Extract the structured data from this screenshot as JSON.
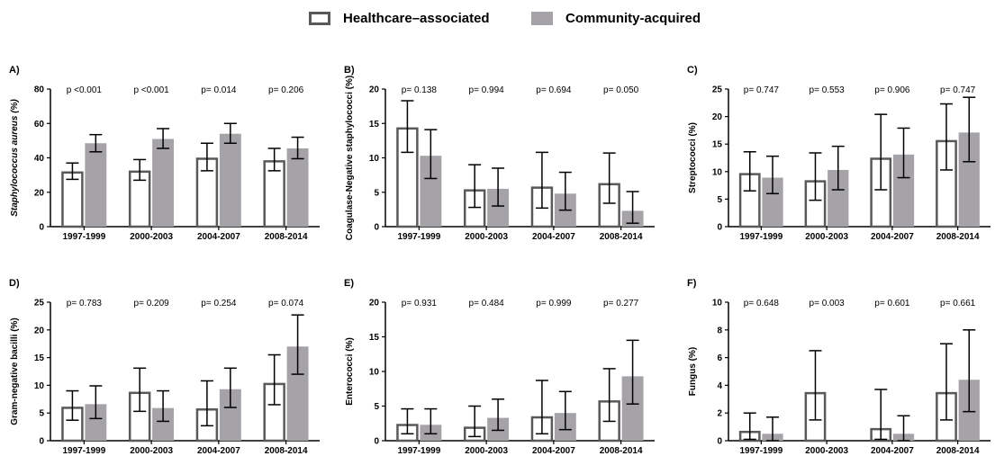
{
  "legend": {
    "healthcare": {
      "label": "Healthcare–associated",
      "fill": "#ffffff",
      "stroke": "#595959"
    },
    "community": {
      "label": "Community-acquired",
      "fill": "#a6a3a8",
      "stroke": "#a6a3a8"
    }
  },
  "chart_data": [
    {
      "type": "bar",
      "panel": "A)",
      "ylabel": "Staphylococcus aureus (%)",
      "ylabel_italic": true,
      "ylim": [
        0,
        80
      ],
      "yticks": [
        0,
        20,
        40,
        60,
        80
      ],
      "categories": [
        "1997-1999",
        "2000-2003",
        "2004-2007",
        "2008-2014"
      ],
      "pvalues": [
        "p <0.001",
        "p <0.001",
        "p= 0.014",
        "p= 0.206"
      ],
      "series": [
        {
          "name": "Healthcare–associated",
          "values": [
            32,
            32.5,
            40,
            38.5
          ],
          "ci_low": [
            27.5,
            27,
            32.5,
            32.5
          ],
          "ci_high": [
            37,
            39,
            48.5,
            45.5
          ]
        },
        {
          "name": "Community-acquired",
          "values": [
            48.5,
            51,
            54,
            45.5
          ],
          "ci_low": [
            43.5,
            45.5,
            48.5,
            39.5
          ],
          "ci_high": [
            53.5,
            57,
            60,
            52
          ]
        }
      ]
    },
    {
      "type": "bar",
      "panel": "B)",
      "ylabel": "Coagulase-Negative staphylococci (%)",
      "ylabel_italic": false,
      "ylim": [
        0,
        20
      ],
      "yticks": [
        0,
        5,
        10,
        15,
        20
      ],
      "categories": [
        "1997-1999",
        "2000-2003",
        "2004-2007",
        "2008-2014"
      ],
      "pvalues": [
        "p= 0.138",
        "p= 0.994",
        "p= 0.694",
        "p= 0.050"
      ],
      "series": [
        {
          "name": "Healthcare–associated",
          "values": [
            14.4,
            5.4,
            5.8,
            6.3
          ],
          "ci_low": [
            10.8,
            2.8,
            2.7,
            3.4
          ],
          "ci_high": [
            18.3,
            9.0,
            10.8,
            10.7
          ]
        },
        {
          "name": "Community-acquired",
          "values": [
            10.3,
            5.5,
            4.8,
            2.3
          ],
          "ci_low": [
            7.0,
            3.0,
            2.4,
            0.5
          ],
          "ci_high": [
            14.1,
            8.5,
            7.9,
            5.1
          ]
        }
      ]
    },
    {
      "type": "bar",
      "panel": "C)",
      "ylabel": "Streptococci (%)",
      "ylabel_italic": false,
      "ylim": [
        0,
        25
      ],
      "yticks": [
        0,
        5,
        10,
        15,
        20,
        25
      ],
      "categories": [
        "1997-1999",
        "2000-2003",
        "2004-2007",
        "2008-2014"
      ],
      "pvalues": [
        "p= 0.747",
        "p= 0.553",
        "p= 0.906",
        "p= 0.747"
      ],
      "series": [
        {
          "name": "Healthcare–associated",
          "values": [
            9.7,
            8.4,
            12.5,
            15.7
          ],
          "ci_low": [
            6.5,
            4.8,
            6.7,
            10.3
          ],
          "ci_high": [
            13.6,
            13.4,
            20.4,
            22.3
          ]
        },
        {
          "name": "Community-acquired",
          "values": [
            8.9,
            10.3,
            13.1,
            17.1
          ],
          "ci_low": [
            6.0,
            6.7,
            8.9,
            11.8
          ],
          "ci_high": [
            12.8,
            14.6,
            17.9,
            23.5
          ]
        }
      ]
    },
    {
      "type": "bar",
      "panel": "D)",
      "ylabel": "Gram-negative bacilli (%)",
      "ylabel_italic": false,
      "ylim": [
        0,
        25
      ],
      "yticks": [
        0,
        5,
        10,
        15,
        20,
        25
      ],
      "categories": [
        "1997-1999",
        "2000-2003",
        "2004-2007",
        "2008-2014"
      ],
      "pvalues": [
        "p= 0.783",
        "p= 0.209",
        "p= 0.254",
        "p= 0.074"
      ],
      "series": [
        {
          "name": "Healthcare–associated",
          "values": [
            6.1,
            8.8,
            5.8,
            10.4
          ],
          "ci_low": [
            3.7,
            5.3,
            2.7,
            6.5
          ],
          "ci_high": [
            9.0,
            13.1,
            10.8,
            15.5
          ]
        },
        {
          "name": "Community-acquired",
          "values": [
            6.6,
            5.9,
            9.3,
            17.0
          ],
          "ci_low": [
            4.0,
            3.5,
            6.0,
            12.0
          ],
          "ci_high": [
            9.9,
            9.0,
            13.1,
            22.7
          ]
        }
      ]
    },
    {
      "type": "bar",
      "panel": "E)",
      "ylabel": "Enterococci (%)",
      "ylabel_italic": false,
      "ylim": [
        0,
        20
      ],
      "yticks": [
        0,
        5,
        10,
        15,
        20
      ],
      "categories": [
        "1997-1999",
        "2000-2003",
        "2004-2007",
        "2008-2014"
      ],
      "pvalues": [
        "p= 0.931",
        "p= 0.484",
        "p= 0.999",
        "p= 0.277"
      ],
      "series": [
        {
          "name": "Healthcare–associated",
          "values": [
            2.4,
            2.0,
            3.5,
            5.8
          ],
          "ci_low": [
            1.0,
            0.6,
            1.0,
            2.8
          ],
          "ci_high": [
            4.6,
            5.0,
            8.7,
            10.4
          ]
        },
        {
          "name": "Community-acquired",
          "values": [
            2.3,
            3.3,
            4.0,
            9.3
          ],
          "ci_low": [
            1.0,
            1.5,
            1.6,
            5.3
          ],
          "ci_high": [
            4.6,
            6.0,
            7.1,
            14.5
          ]
        }
      ]
    },
    {
      "type": "bar",
      "panel": "F)",
      "ylabel": "Fungus (%)",
      "ylabel_italic": false,
      "ylim": [
        0,
        10
      ],
      "yticks": [
        0,
        2,
        4,
        6,
        8,
        10
      ],
      "categories": [
        "1997-1999",
        "2000-2003",
        "2004-2007",
        "2008-2014"
      ],
      "pvalues": [
        "p= 0.648",
        "p= 0.003",
        "p= 0.601",
        "p= 0.661"
      ],
      "series": [
        {
          "name": "Healthcare–associated",
          "values": [
            0.7,
            3.5,
            0.9,
            3.5
          ],
          "ci_low": [
            0.1,
            1.5,
            0.1,
            1.5
          ],
          "ci_high": [
            2.0,
            6.5,
            3.7,
            7.0
          ]
        },
        {
          "name": "Community-acquired",
          "values": [
            0.5,
            0,
            0.5,
            4.4
          ],
          "ci_low": [
            0.0,
            null,
            0.0,
            2.1
          ],
          "ci_high": [
            1.7,
            null,
            1.8,
            8.0
          ]
        }
      ]
    }
  ]
}
